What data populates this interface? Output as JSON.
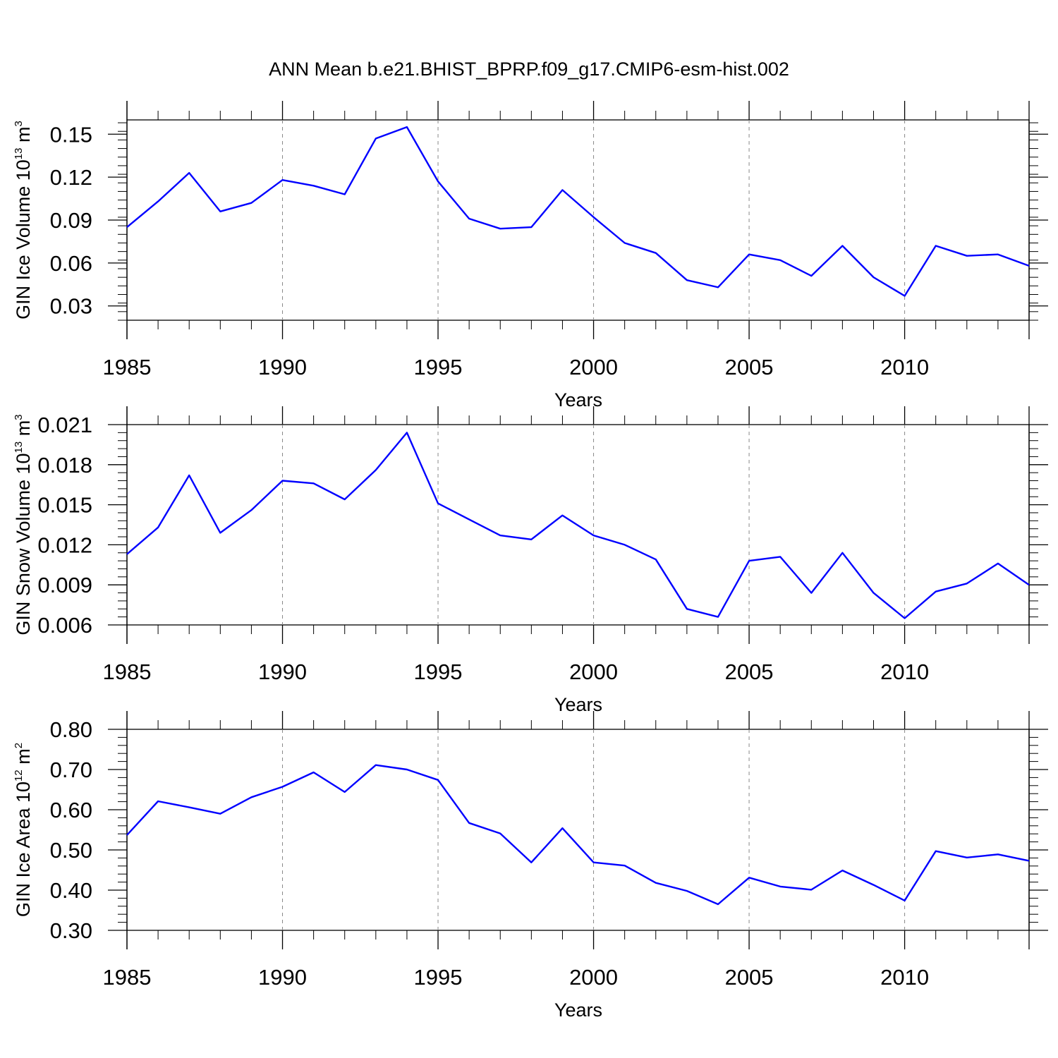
{
  "figure_title": "ANN Mean b.e21.BHIST_BPRP.f09_g17.CMIP6-esm-hist.002",
  "chart_data": [
    {
      "type": "line",
      "title": "ANN Mean b.e21.BHIST_BPRP.f09_g17.CMIP6-esm-hist.002",
      "ylabel_main": "GIN Ice Volume 10",
      "ylabel_exp": "13",
      "ylabel_unit": " m",
      "ylabel_unit_exp": "3",
      "xlabel": "Years",
      "xlim": [
        1985,
        2014
      ],
      "ylim": [
        0.02,
        0.16
      ],
      "yticks": [
        0.03,
        0.06,
        0.09,
        0.12,
        0.15
      ],
      "ytick_labels": [
        "0.03",
        "0.06",
        "0.09",
        "0.12",
        "0.15"
      ],
      "xticks": [
        1985,
        1990,
        1995,
        2000,
        2005,
        2010
      ],
      "xtick_labels": [
        "1985",
        "1990",
        "1995",
        "2000",
        "2005",
        "2010"
      ],
      "grid": "vertical dashed at major x ticks",
      "series": [
        {
          "name": "GIN Ice Volume",
          "color": "#0000ff",
          "x": [
            1985,
            1986,
            1987,
            1988,
            1989,
            1990,
            1991,
            1992,
            1993,
            1994,
            1995,
            1996,
            1997,
            1998,
            1999,
            2000,
            2001,
            2002,
            2003,
            2004,
            2005,
            2006,
            2007,
            2008,
            2009,
            2010,
            2011,
            2012,
            2013,
            2014
          ],
          "values": [
            0.085,
            0.103,
            0.123,
            0.096,
            0.102,
            0.118,
            0.114,
            0.108,
            0.147,
            0.155,
            0.117,
            0.091,
            0.084,
            0.085,
            0.111,
            0.092,
            0.074,
            0.067,
            0.048,
            0.043,
            0.066,
            0.062,
            0.051,
            0.072,
            0.05,
            0.037,
            0.072,
            0.065,
            0.066,
            0.058
          ]
        }
      ]
    },
    {
      "type": "line",
      "ylabel_main": "GIN Snow Volume 10",
      "ylabel_exp": "13",
      "ylabel_unit": " m",
      "ylabel_unit_exp": "3",
      "xlabel": "Years",
      "xlim": [
        1985,
        2014
      ],
      "ylim": [
        0.006,
        0.021
      ],
      "yticks": [
        0.006,
        0.009,
        0.012,
        0.015,
        0.018,
        0.021
      ],
      "ytick_labels": [
        "0.006",
        "0.009",
        "0.012",
        "0.015",
        "0.018",
        "0.021"
      ],
      "xticks": [
        1985,
        1990,
        1995,
        2000,
        2005,
        2010
      ],
      "xtick_labels": [
        "1985",
        "1990",
        "1995",
        "2000",
        "2005",
        "2010"
      ],
      "grid": "vertical dashed at major x ticks",
      "series": [
        {
          "name": "GIN Snow Volume",
          "color": "#0000ff",
          "x": [
            1985,
            1986,
            1987,
            1988,
            1989,
            1990,
            1991,
            1992,
            1993,
            1994,
            1995,
            1996,
            1997,
            1998,
            1999,
            2000,
            2001,
            2002,
            2003,
            2004,
            2005,
            2006,
            2007,
            2008,
            2009,
            2010,
            2011,
            2012,
            2013,
            2014
          ],
          "values": [
            0.0113,
            0.0133,
            0.0172,
            0.0129,
            0.0146,
            0.0168,
            0.0166,
            0.0154,
            0.0176,
            0.0204,
            0.0151,
            0.0139,
            0.0127,
            0.0124,
            0.0142,
            0.0127,
            0.012,
            0.0109,
            0.0072,
            0.0066,
            0.0108,
            0.0111,
            0.0084,
            0.0114,
            0.0084,
            0.0065,
            0.0085,
            0.0091,
            0.0106,
            0.009
          ]
        }
      ]
    },
    {
      "type": "line",
      "ylabel_main": "GIN Ice Area 10",
      "ylabel_exp": "12",
      "ylabel_unit": " m",
      "ylabel_unit_exp": "2",
      "xlabel": "Years",
      "xlim": [
        1985,
        2014
      ],
      "ylim": [
        0.3,
        0.8
      ],
      "yticks": [
        0.3,
        0.4,
        0.5,
        0.6,
        0.7,
        0.8
      ],
      "ytick_labels": [
        "0.30",
        "0.40",
        "0.50",
        "0.60",
        "0.70",
        "0.80"
      ],
      "xticks": [
        1985,
        1990,
        1995,
        2000,
        2005,
        2010
      ],
      "xtick_labels": [
        "1985",
        "1990",
        "1995",
        "2000",
        "2005",
        "2010"
      ],
      "grid": "vertical dashed at major x ticks",
      "series": [
        {
          "name": "GIN Ice Area",
          "color": "#0000ff",
          "x": [
            1985,
            1986,
            1987,
            1988,
            1989,
            1990,
            1991,
            1992,
            1993,
            1994,
            1995,
            1996,
            1997,
            1998,
            1999,
            2000,
            2001,
            2002,
            2003,
            2004,
            2005,
            2006,
            2007,
            2008,
            2009,
            2010,
            2011,
            2012,
            2013,
            2014
          ],
          "values": [
            0.537,
            0.621,
            0.606,
            0.59,
            0.631,
            0.657,
            0.693,
            0.644,
            0.711,
            0.7,
            0.674,
            0.567,
            0.541,
            0.469,
            0.554,
            0.469,
            0.461,
            0.418,
            0.398,
            0.365,
            0.431,
            0.409,
            0.401,
            0.449,
            0.413,
            0.374,
            0.497,
            0.481,
            0.489,
            0.473
          ]
        }
      ]
    }
  ]
}
